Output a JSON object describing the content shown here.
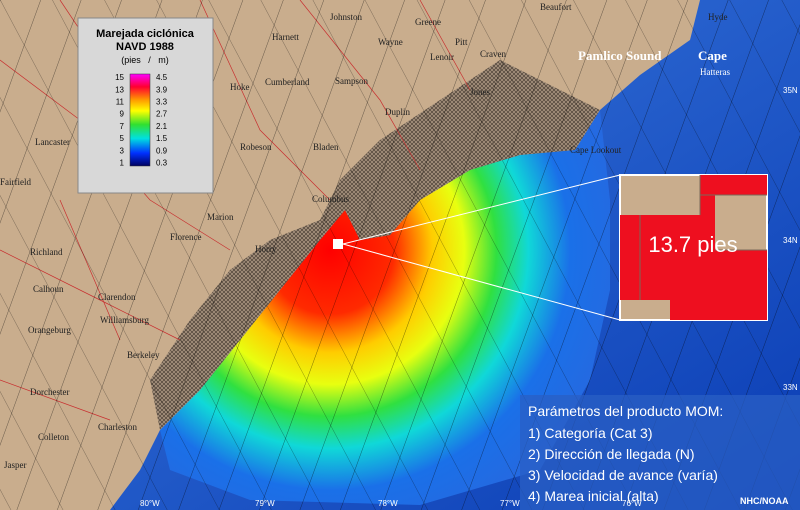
{
  "legend": {
    "title": "Marejada ciclónica",
    "datum": "NAVD 1988",
    "units": "(pies   /   m)",
    "feet": [
      "15",
      "13",
      "11",
      "9",
      "7",
      "5",
      "3",
      "1"
    ],
    "meters": [
      "4.5",
      "3.9",
      "3.3",
      "2.7",
      "2.1",
      "1.5",
      "0.9",
      "0.3"
    ]
  },
  "inset": {
    "label": "13.7 pies"
  },
  "parameters": {
    "title": "Parámetros del producto MOM:",
    "items": [
      "1) Categoría (Cat 3)",
      "2) Dirección de llegada (N)",
      "3) Velocidad de avance (varía)",
      "4) Marea inicial (alta)"
    ]
  },
  "places": [
    "Johnston",
    "Greene",
    "Pitt",
    "Beaufort",
    "Hyde",
    "Harnett",
    "Wayne",
    "Lenoir",
    "Craven",
    "Cumberland",
    "Sampson",
    "Hoke",
    "Duplin",
    "Jones",
    "Robeson",
    "Bladen",
    "Columbus",
    "Lancaster",
    "Fairfield",
    "Marion",
    "Florence",
    "Horry",
    "Richland",
    "Calhoun",
    "Clarendon",
    "Williamsburg",
    "Orangeburg",
    "Berkeley",
    "Dorchester",
    "Colleton",
    "Charleston",
    "Jasper",
    "Cape Lookout"
  ],
  "water": {
    "sound": "Pamlico Sound",
    "cape": "Cape",
    "cape2": "Hatteras"
  },
  "coordinates": [
    "35N",
    "34N",
    "33N",
    "80°W",
    "79°W",
    "78°W",
    "77°W",
    "76°W"
  ],
  "credit": "NHC/NOAA"
}
